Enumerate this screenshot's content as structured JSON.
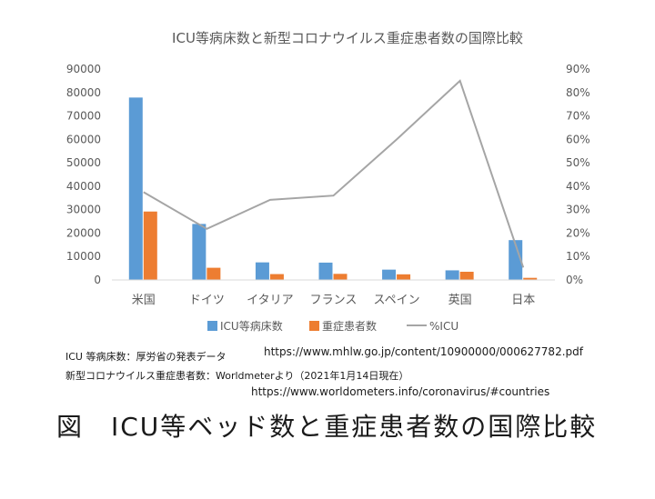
{
  "chart_data": {
    "type": "bar",
    "title": "ICU等病床数と新型コロナウイルス重症患者数の国際比較",
    "categories": [
      "米国",
      "ドイツ",
      "イタリア",
      "フランス",
      "スペイン",
      "英国",
      "日本"
    ],
    "series": [
      {
        "name": "ICU等病床数",
        "type": "bar",
        "axis": "left",
        "color": "#5b9bd5",
        "values": [
          77850,
          23900,
          7500,
          7400,
          4400,
          4100,
          17000
        ]
      },
      {
        "name": "重症患者数",
        "type": "bar",
        "axis": "left",
        "color": "#ed7d31",
        "values": [
          29200,
          5200,
          2500,
          2600,
          2400,
          3500,
          900
        ]
      },
      {
        "name": "%ICU",
        "type": "line",
        "axis": "right",
        "color": "#a5a5a5",
        "values": [
          0.375,
          0.218,
          0.342,
          0.36,
          0.6,
          0.85,
          0.053
        ]
      }
    ],
    "ylim": [
      0,
      90000
    ],
    "yticks": [
      "0",
      "10000",
      "20000",
      "30000",
      "40000",
      "50000",
      "60000",
      "70000",
      "80000",
      "90000"
    ],
    "y2lim": [
      0,
      0.9
    ],
    "y2ticks": [
      "0%",
      "10%",
      "20%",
      "30%",
      "40%",
      "50%",
      "60%",
      "70%",
      "80%",
      "90%"
    ],
    "grid": false,
    "legend": "bottom"
  },
  "sources": {
    "icu_label": "ICU 等病床数：厚労省の発表データ",
    "icu_url": "https://www.mhlw.go.jp/content/10900000/000627782.pdf",
    "severe_label": "新型コロナウイルス重症患者数：Worldmeterより（2021年1月14日現在）",
    "severe_url": "https://www.worldometers.info/coronavirus/#countries"
  },
  "caption": "図　ICU等ベッド数と重症患者数の国際比較"
}
